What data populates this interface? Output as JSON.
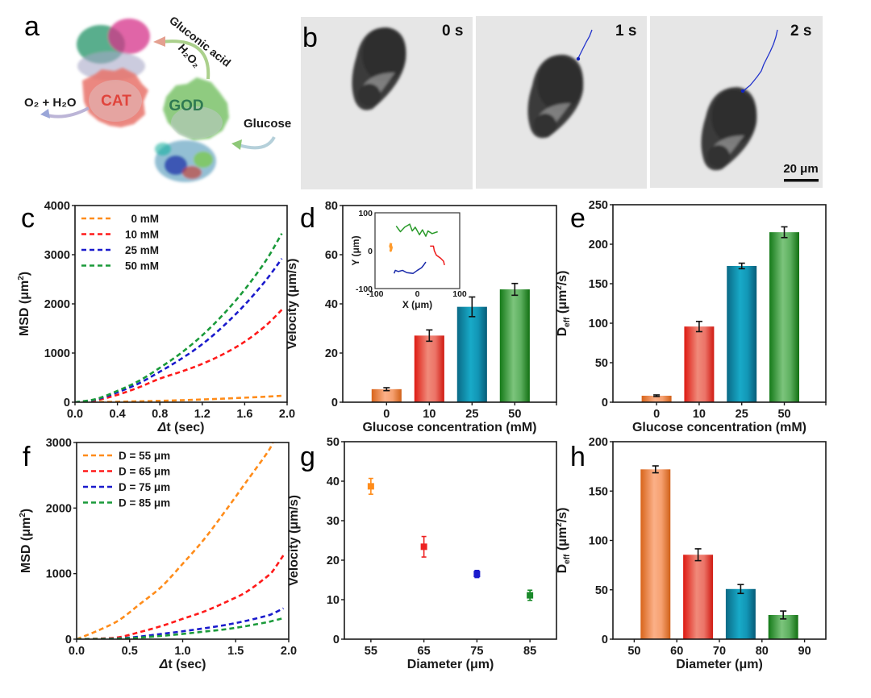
{
  "panel_labels": {
    "a": "a",
    "b": "b",
    "c": "c",
    "d": "d",
    "e": "e",
    "f": "f",
    "g": "g",
    "h": "h"
  },
  "schematic": {
    "enzyme_left": "CAT",
    "enzyme_right": "GOD",
    "product_left": "O₂ + H₂O",
    "intermediate": "H₂O₂",
    "byproduct": "Gluconic acid",
    "substrate": "Glucose",
    "colors": {
      "cat": "#e8736a",
      "god": "#7cc36a",
      "arrow_left": "#9aa6d8",
      "arrow_top": "#8cc36a",
      "arrow_right": "#8ec8a0"
    }
  },
  "micrographs": {
    "frames": [
      {
        "label": "0 s"
      },
      {
        "label": "1 s"
      },
      {
        "label": "2 s"
      }
    ],
    "scale_bar": "20 μm",
    "trajectory_color": "#2233cc"
  },
  "chart_data": [
    {
      "id": "c",
      "type": "line",
      "xlabel": "Δt (sec)",
      "ylabel": "MSD (μm²)",
      "xlim": [
        0,
        2.0
      ],
      "ylim": [
        0,
        4000
      ],
      "xticks": [
        "0.0",
        "0.4",
        "0.8",
        "1.2",
        "1.6",
        "2.0"
      ],
      "yticks": [
        "0",
        "1000",
        "2000",
        "3000",
        "4000"
      ],
      "legend_position": "top-left",
      "line_style": "dashed",
      "x": [
        0,
        0.2,
        0.4,
        0.6,
        0.8,
        1.0,
        1.2,
        1.4,
        1.6,
        1.8,
        1.95
      ],
      "series": [
        {
          "name": "0 mM",
          "color": "#ff8c1a",
          "values": [
            0,
            4,
            10,
            18,
            28,
            40,
            55,
            72,
            92,
            112,
            130
          ]
        },
        {
          "name": "10 mM",
          "color": "#ff1a1a",
          "values": [
            0,
            40,
            150,
            300,
            480,
            620,
            780,
            980,
            1230,
            1560,
            1880
          ]
        },
        {
          "name": "25 mM",
          "color": "#1a1acc",
          "values": [
            0,
            55,
            200,
            380,
            620,
            880,
            1180,
            1550,
            1980,
            2480,
            2920
          ]
        },
        {
          "name": "50 mM",
          "color": "#1a9a3a",
          "values": [
            0,
            65,
            230,
            430,
            700,
            1000,
            1360,
            1790,
            2290,
            2880,
            3430
          ]
        }
      ]
    },
    {
      "id": "d",
      "type": "bar",
      "xlabel": "Glucose concentration (mM)",
      "ylabel": "Velocity (μm/s)",
      "ylim": [
        0,
        80
      ],
      "yticks": [
        "0",
        "20",
        "40",
        "60",
        "80"
      ],
      "categories": [
        "0",
        "10",
        "25",
        "50"
      ],
      "values": [
        5.3,
        27.1,
        38.8,
        45.9
      ],
      "errors": [
        0.6,
        2.3,
        4.0,
        2.4
      ],
      "colors": [
        "#f08a3c",
        "#e8453a",
        "#1295b5",
        "#2d9a3a"
      ],
      "inset": {
        "type": "scatter",
        "xlabel": "X (μm)",
        "ylabel": "Y (μm)",
        "xlim": [
          -100,
          100
        ],
        "ylim": [
          -100,
          100
        ],
        "xticks": [
          "-100",
          "0",
          "100"
        ],
        "yticks": [
          "-100",
          "0",
          "100"
        ],
        "trajectories": [
          {
            "name": "0 mM",
            "color": "#ff9a2a",
            "points": [
              [
                -62,
                20
              ],
              [
                -64,
                12
              ],
              [
                -62,
                5
              ],
              [
                -63,
                0
              ],
              [
                -61,
                8
              ],
              [
                -63,
                15
              ]
            ]
          },
          {
            "name": "10 mM",
            "color": "#ee1a1a",
            "points": [
              [
                30,
                12
              ],
              [
                38,
                12
              ],
              [
                40,
                0
              ],
              [
                45,
                -12
              ],
              [
                55,
                -20
              ],
              [
                62,
                -28
              ],
              [
                64,
                -38
              ]
            ]
          },
          {
            "name": "25 mM",
            "color": "#1a2aaa",
            "points": [
              [
                -55,
                -60
              ],
              [
                -52,
                -52
              ],
              [
                -45,
                -55
              ],
              [
                -35,
                -52
              ],
              [
                -25,
                -58
              ],
              [
                -10,
                -60
              ],
              [
                0,
                -52
              ],
              [
                10,
                -45
              ],
              [
                15,
                -38
              ],
              [
                20,
                -30
              ]
            ]
          },
          {
            "name": "50 mM",
            "color": "#2a9a2a",
            "points": [
              [
                -50,
                65
              ],
              [
                -40,
                50
              ],
              [
                -30,
                62
              ],
              [
                -18,
                70
              ],
              [
                -12,
                52
              ],
              [
                -5,
                62
              ],
              [
                5,
                42
              ],
              [
                12,
                55
              ],
              [
                20,
                38
              ],
              [
                25,
                52
              ],
              [
                35,
                45
              ],
              [
                48,
                50
              ]
            ]
          }
        ]
      }
    },
    {
      "id": "e",
      "type": "bar",
      "xlabel": "Glucose concentration (mM)",
      "ylabel": "D_eff (μm²/s)",
      "ylim": [
        0,
        250
      ],
      "yticks": [
        "0",
        "50",
        "100",
        "150",
        "200",
        "250"
      ],
      "categories": [
        "0",
        "10",
        "25",
        "50"
      ],
      "values": [
        8.2,
        95.8,
        172.5,
        215.2
      ],
      "errors": [
        1.0,
        6.5,
        3.5,
        6.8
      ],
      "colors": [
        "#f08a3c",
        "#e8453a",
        "#1295b5",
        "#2d9a3a"
      ]
    },
    {
      "id": "f",
      "type": "line",
      "xlabel": "Δt (sec)",
      "ylabel": "MSD (μm²)",
      "xlim": [
        0,
        2.0
      ],
      "ylim": [
        0,
        3000
      ],
      "xticks": [
        "0.0",
        "0.5",
        "1.0",
        "1.5",
        "2.0"
      ],
      "yticks": [
        "0",
        "1000",
        "2000",
        "3000"
      ],
      "legend_position": "top-left",
      "line_style": "dashed",
      "x": [
        0,
        0.2,
        0.4,
        0.6,
        0.8,
        1.0,
        1.2,
        1.4,
        1.6,
        1.8,
        1.85,
        1.95
      ],
      "series": [
        {
          "name": "D = 55 μm",
          "color": "#ff8c1a",
          "values": [
            0,
            130,
            290,
            540,
            800,
            1150,
            1520,
            1950,
            2400,
            2850,
            3000,
            null
          ]
        },
        {
          "name": "D = 65 μm",
          "color": "#ff1a1a",
          "values": [
            0,
            8,
            30,
            110,
            200,
            310,
            420,
            560,
            720,
            960,
            1040,
            1280
          ]
        },
        {
          "name": "D = 75 μm",
          "color": "#1a1acc",
          "values": [
            0,
            3,
            12,
            40,
            80,
            120,
            165,
            215,
            280,
            360,
            390,
            470
          ]
        },
        {
          "name": "D = 85 μm",
          "color": "#1a9a3a",
          "values": [
            0,
            2,
            8,
            25,
            50,
            80,
            115,
            150,
            200,
            260,
            280,
            320
          ]
        }
      ]
    },
    {
      "id": "g",
      "type": "scatter",
      "xlabel": "Diameter (μm)",
      "ylabel": "Velocity (μm/s)",
      "xlim": [
        50,
        90
      ],
      "ylim": [
        0,
        50
      ],
      "xticks": [
        "55",
        "65",
        "75",
        "85"
      ],
      "yticks": [
        "0",
        "10",
        "20",
        "30",
        "40",
        "50"
      ],
      "x": [
        55,
        65,
        75,
        85
      ],
      "values": [
        38.7,
        23.4,
        16.5,
        11.1
      ],
      "errors": [
        2.0,
        2.6,
        0.9,
        1.3
      ],
      "colors": [
        "#ff8c1a",
        "#ee2222",
        "#1a1acc",
        "#1a8a2a"
      ]
    },
    {
      "id": "h",
      "type": "bar",
      "xlabel": "Diameter (μm)",
      "ylabel": "D_eff (μm²/s)",
      "xlim": [
        45,
        95
      ],
      "ylim": [
        0,
        200
      ],
      "xticks": [
        "50",
        "60",
        "70",
        "80",
        "90"
      ],
      "yticks": [
        "0",
        "50",
        "100",
        "150",
        "200"
      ],
      "x": [
        55,
        65,
        75,
        85
      ],
      "values": [
        172.0,
        85.5,
        50.8,
        24.5
      ],
      "errors": [
        3.5,
        6.0,
        4.5,
        4.0
      ],
      "colors": [
        "#f08a3c",
        "#e8453a",
        "#1295b5",
        "#2d9a3a"
      ]
    }
  ]
}
